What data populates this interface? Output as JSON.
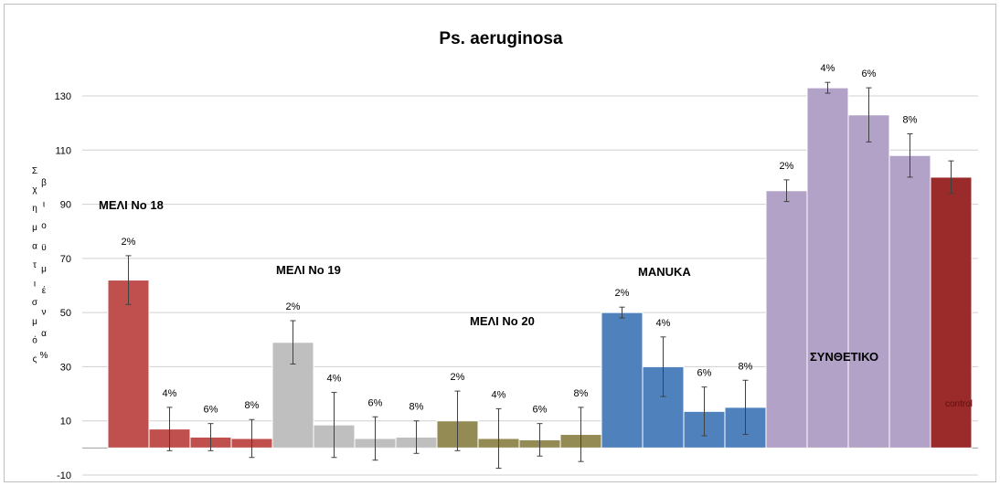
{
  "chart_data": {
    "type": "bar",
    "title": "Ps. aeruginosa",
    "ylabel_col1": [
      "Σ",
      "χ",
      "η",
      "μ",
      "α",
      "τ",
      "ι",
      "σ",
      "μ",
      "ό",
      "ς"
    ],
    "ylabel_col2": [
      "β",
      "ι",
      "ο",
      "ϋ",
      "μ",
      "έ",
      "ν",
      "α",
      "%"
    ],
    "ylim": [
      -10,
      140
    ],
    "yticks": [
      -10,
      10,
      30,
      50,
      70,
      90,
      110,
      130
    ],
    "grid": true,
    "groups": [
      {
        "name": "ΜΕΛΙ Νο 18",
        "color": "#c0504d",
        "bars": [
          {
            "label": "2%",
            "value": 62,
            "err": 9
          },
          {
            "label": "4%",
            "value": 7,
            "err": 8
          },
          {
            "label": "6%",
            "value": 4,
            "err": 5
          },
          {
            "label": "8%",
            "value": 3.5,
            "err": 7
          }
        ]
      },
      {
        "name": "ΜΕΛΙ Νο 19",
        "color": "#bfbfbf",
        "bars": [
          {
            "label": "2%",
            "value": 39,
            "err": 8
          },
          {
            "label": "4%",
            "value": 8.5,
            "err": 12
          },
          {
            "label": "6%",
            "value": 3.5,
            "err": 8
          },
          {
            "label": "8%",
            "value": 4,
            "err": 6
          }
        ]
      },
      {
        "name": "ΜΕΛΙ Νο 20",
        "color": "#948a54",
        "bars": [
          {
            "label": "2%",
            "value": 10,
            "err": 11
          },
          {
            "label": "4%",
            "value": 3.5,
            "err": 11
          },
          {
            "label": "6%",
            "value": 3,
            "err": 6
          },
          {
            "label": "8%",
            "value": 5,
            "err": 10
          }
        ]
      },
      {
        "name": "MANUKA",
        "color": "#4f81bd",
        "bars": [
          {
            "label": "2%",
            "value": 50,
            "err": 2
          },
          {
            "label": "4%",
            "value": 30,
            "err": 11
          },
          {
            "label": "6%",
            "value": 13.5,
            "err": 9
          },
          {
            "label": "8%",
            "value": 15,
            "err": 10
          }
        ]
      },
      {
        "name": "ΣΥΝΘΕΤΙΚΟ",
        "color": "#b3a2c7",
        "bars": [
          {
            "label": "2%",
            "value": 95,
            "err": 4
          },
          {
            "label": "4%",
            "value": 133,
            "err": 2
          },
          {
            "label": "6%",
            "value": 123,
            "err": 10
          },
          {
            "label": "8%",
            "value": 108,
            "err": 8
          }
        ]
      }
    ],
    "control": {
      "label": "control",
      "value": 100,
      "err": 6,
      "color": "#9b2b2b"
    }
  }
}
